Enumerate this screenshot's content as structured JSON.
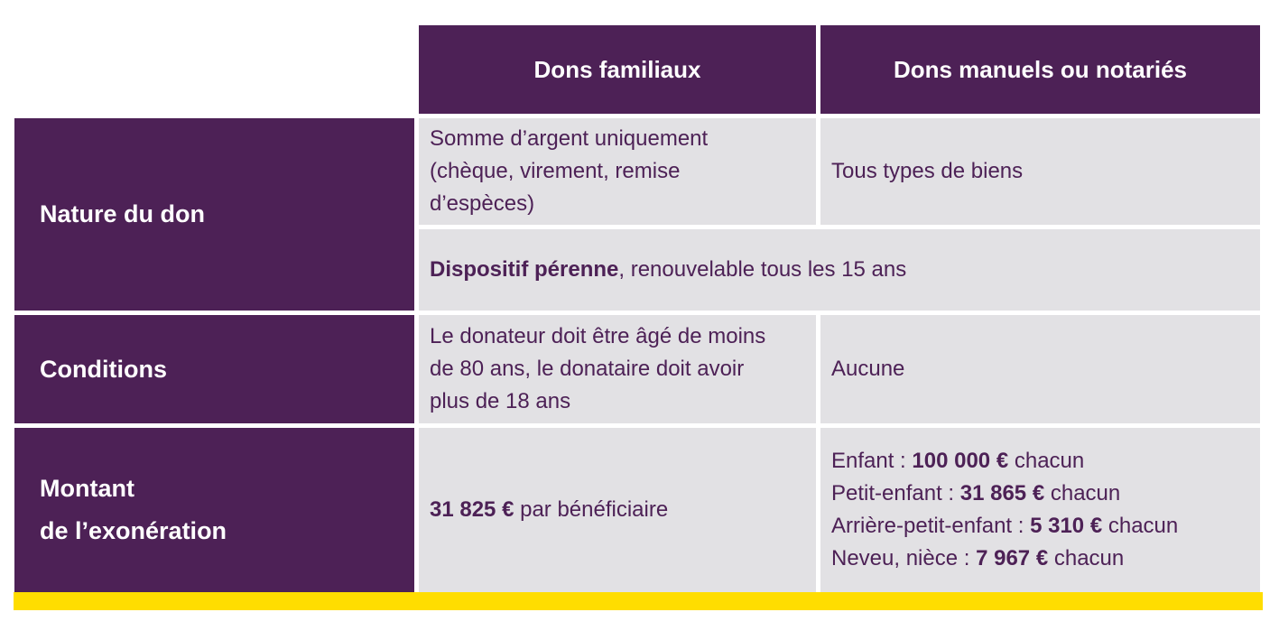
{
  "header": {
    "col1": "Dons familiaux",
    "col2": "Dons manuels ou notariés"
  },
  "rows": {
    "nature": {
      "label": "Nature du don",
      "familiaux": [
        "Somme d’argent uniquement",
        "(chèque, virement, remise",
        "d’espèces)"
      ],
      "manuels": "Tous types de biens",
      "shared_bold": "Dispositif pérenne",
      "shared_rest": ", renouvelable tous les 15 ans"
    },
    "conditions": {
      "label": "Conditions",
      "familiaux": [
        "Le donateur doit être âgé de moins",
        "de 80 ans, le donataire doit avoir",
        "plus de 18 ans"
      ],
      "manuels": "Aucune"
    },
    "montant": {
      "label_line1": "Montant",
      "label_line2": "de l’exonération",
      "familiaux_bold": "31 825 €",
      "familiaux_rest": " par bénéficiaire",
      "manuels": [
        {
          "prefix": "Enfant : ",
          "amount": "100 000 €",
          "suffix": " chacun"
        },
        {
          "prefix": "Petit-enfant : ",
          "amount": "31 865 €",
          "suffix": " chacun"
        },
        {
          "prefix": "Arrière-petit-enfant : ",
          "amount": "5 310 €",
          "suffix": " chacun"
        },
        {
          "prefix": "Neveu, nièce : ",
          "amount": "7 967 €",
          "suffix": " chacun"
        }
      ]
    }
  },
  "colors": {
    "purple": "#4d2156",
    "grey": "#e2e1e4",
    "yellow": "#ffdd00"
  }
}
